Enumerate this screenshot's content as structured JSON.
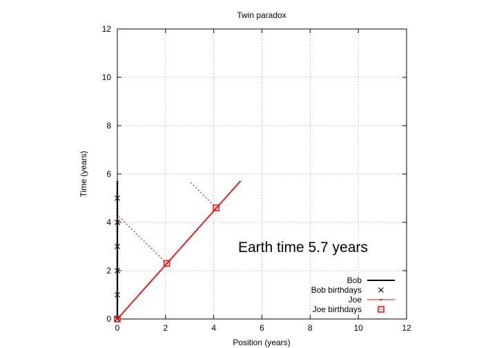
{
  "chart_data": {
    "type": "scatter",
    "title": "Twin paradox",
    "xlabel": "Position (years)",
    "ylabel": "Time (years)",
    "xlim": [
      0,
      12
    ],
    "ylim": [
      0,
      12
    ],
    "x_ticks": [
      0,
      2,
      4,
      6,
      8,
      10,
      12
    ],
    "y_ticks": [
      0,
      2,
      4,
      6,
      8,
      10,
      12
    ],
    "x_tick_labels": [
      "0",
      "2",
      "4",
      "6",
      "8",
      "10",
      "12"
    ],
    "y_tick_labels": [
      "0",
      "2",
      "4",
      "6",
      "8",
      "10",
      "12"
    ],
    "grid": true,
    "legend_position": "bottom-right",
    "annotation": "Earth time  5.7 years",
    "series": [
      {
        "name": "Bob",
        "style": "line-points",
        "color": "#000000",
        "points": [
          [
            0,
            0
          ],
          [
            0,
            5.7
          ]
        ]
      },
      {
        "name": "Bob birthdays",
        "style": "cross",
        "color": "#000000",
        "points": [
          [
            0,
            0
          ],
          [
            0,
            1
          ],
          [
            0,
            2
          ],
          [
            0,
            3
          ],
          [
            0,
            4
          ],
          [
            0,
            5
          ]
        ]
      },
      {
        "name": "Joe",
        "style": "line-points",
        "color": "#ff0000",
        "points": [
          [
            0,
            0
          ],
          [
            5.1,
            5.7
          ]
        ]
      },
      {
        "name": "Joe birthdays",
        "style": "square",
        "color": "#ff0000",
        "points": [
          [
            0,
            0
          ],
          [
            2.05,
            2.3
          ],
          [
            4.1,
            4.6
          ]
        ]
      }
    ],
    "simultaneity_lines": [
      {
        "color": "#ff0000",
        "dash": "dotted",
        "points": [
          [
            2.05,
            2.3
          ],
          [
            0,
            4.3
          ]
        ]
      },
      {
        "color": "#ff0000",
        "dash": "dotted",
        "points": [
          [
            4.1,
            4.6
          ],
          [
            3.0,
            5.7
          ]
        ]
      }
    ]
  }
}
